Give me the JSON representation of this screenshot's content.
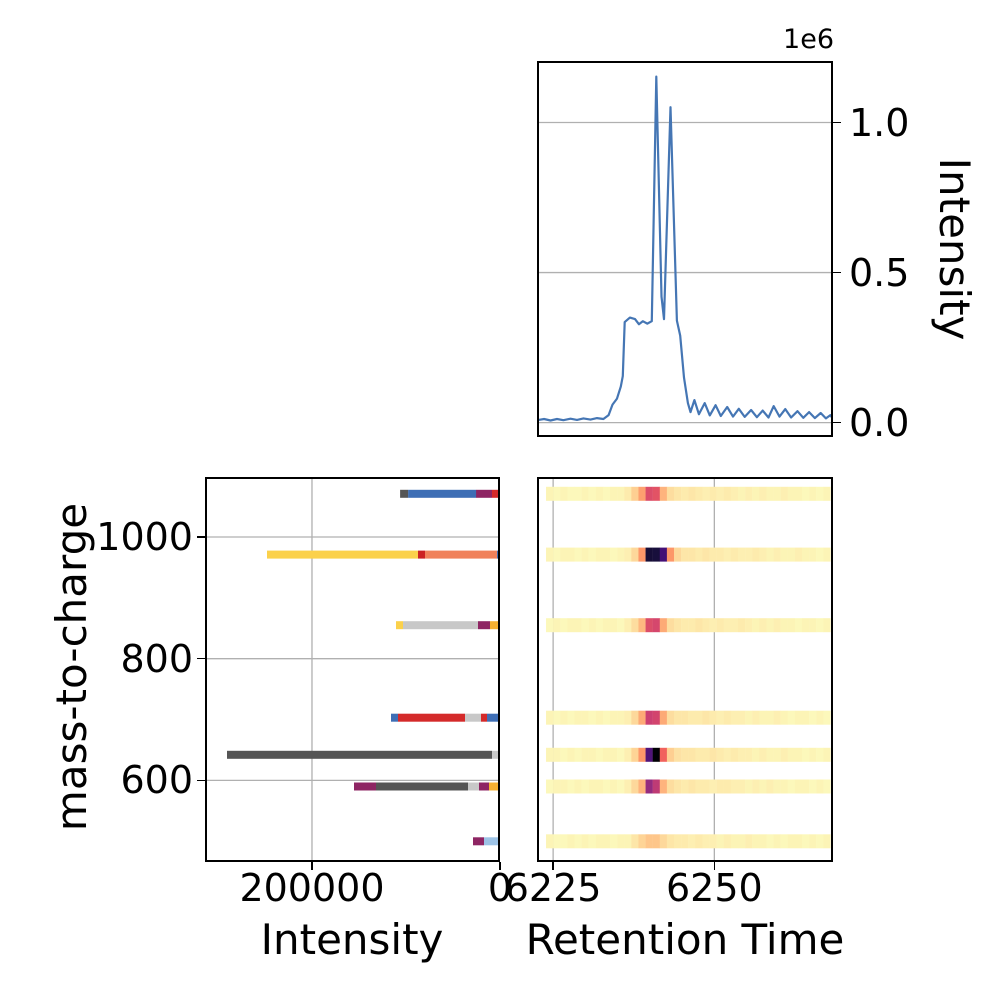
{
  "style": {
    "background": "#ffffff",
    "grid_color": "#b0b0b0",
    "spine_color": "#000000",
    "line_color": "#4576b4",
    "text_color": "#000000"
  },
  "panels": {
    "xic": {
      "ylabel": "Intensity",
      "offset_label": "1e6"
    },
    "spectrum": {
      "xlabel": "Intensity",
      "ylabel": "mass-to-charge"
    },
    "heatmap": {
      "xlabel": "Retention Time"
    }
  },
  "chart_data": [
    {
      "type": "line",
      "name": "chromatogram",
      "xlabel": "Retention Time",
      "ylabel": "Intensity",
      "offset": "1e6",
      "xlim": [
        6222.5,
        6268.4
      ],
      "ylim": [
        -48000,
        1205000
      ],
      "grid": "horizontal",
      "yticks": [
        {
          "v": 0,
          "label": "0.0"
        },
        {
          "v": 500000,
          "label": "0.5"
        },
        {
          "v": 1000000,
          "label": "1.0"
        }
      ],
      "x": [
        6222.5,
        6223.6,
        6224.6,
        6225.6,
        6226.6,
        6227.7,
        6228.7,
        6229.7,
        6230.8,
        6231.8,
        6232.8,
        6233.6,
        6234.2,
        6234.9,
        6235.5,
        6235.8,
        6236.1,
        6236.9,
        6237.7,
        6238.3,
        6238.9,
        6239.6,
        6240.3,
        6241.0,
        6241.8,
        6242.2,
        6243.2,
        6244.2,
        6244.7,
        6245.3,
        6245.9,
        6246.3,
        6246.9,
        6247.6,
        6248.5,
        6249.3,
        6250.2,
        6251.0,
        6252.0,
        6252.9,
        6253.8,
        6254.7,
        6255.7,
        6256.6,
        6257.5,
        6258.4,
        6259.2,
        6260.1,
        6261.0,
        6261.9,
        6262.9,
        6263.8,
        6264.7,
        6265.6,
        6266.5,
        6267.3,
        6268.0,
        6268.4
      ],
      "y": [
        8000,
        12000,
        7000,
        12000,
        8000,
        13000,
        9000,
        14000,
        10000,
        15000,
        12000,
        25000,
        60000,
        80000,
        120000,
        155000,
        335000,
        350000,
        345000,
        328000,
        338000,
        330000,
        338000,
        1153000,
        420000,
        345000,
        1051000,
        340000,
        290000,
        150000,
        65000,
        35000,
        75000,
        28000,
        65000,
        24000,
        58000,
        22000,
        52000,
        20000,
        46000,
        19000,
        42000,
        18000,
        40000,
        17000,
        55000,
        20000,
        45000,
        17000,
        38000,
        16000,
        35000,
        15000,
        32000,
        14000,
        25000,
        12000
      ]
    },
    {
      "type": "bar",
      "name": "mass-spectrum",
      "orientation": "horizontal-stacked",
      "stack_origin": "right edge (intensity 0), x-axis inverted",
      "xlabel": "Intensity",
      "ylabel": "mass-to-charge",
      "xlim": [
        0,
        313800
      ],
      "ylim": [
        465.9,
        1098.6
      ],
      "grid": "both",
      "xticks": [
        {
          "v": 200000,
          "label": "200000"
        },
        {
          "v": 0,
          "label": "0"
        }
      ],
      "yticks": [
        {
          "v": 1000,
          "label": "1000"
        },
        {
          "v": 800,
          "label": "800"
        },
        {
          "v": 600,
          "label": "600"
        }
      ],
      "palette": {
        "blue": "#3e6eb5",
        "red": "#d42a2a",
        "dark_red": "#cc2222",
        "magenta": "#8e2563",
        "dark_gray": "#555555",
        "silver": "#c8c8c8",
        "yellow": "#fbd14b",
        "salmon": "#f0815a",
        "orange": "#f5b031",
        "light_blue": "#9dc3e6"
      },
      "bars": [
        {
          "mz": 1071,
          "segments": [
            {
              "color": "red",
              "value": 8500
            },
            {
              "color": "magenta",
              "value": 17000
            },
            {
              "color": "blue",
              "value": 72300
            },
            {
              "color": "dark_gray",
              "value": 8500
            }
          ]
        },
        {
          "mz": 971,
          "segments": [
            {
              "color": "blue",
              "value": 3200
            },
            {
              "color": "salmon",
              "value": 76600
            },
            {
              "color": "dark_red",
              "value": 7400
            },
            {
              "color": "yellow",
              "value": 160600
            }
          ]
        },
        {
          "mz": 855,
          "segments": [
            {
              "color": "orange",
              "value": 10600
            },
            {
              "color": "magenta",
              "value": 12800
            },
            {
              "color": "silver",
              "value": 79800
            },
            {
              "color": "yellow",
              "value": 7400
            }
          ]
        },
        {
          "mz": 703,
          "segments": [
            {
              "color": "blue",
              "value": 13800
            },
            {
              "color": "red",
              "value": 6400
            },
            {
              "color": "silver",
              "value": 17000
            },
            {
              "color": "red",
              "value": 71300
            },
            {
              "color": "blue",
              "value": 7400
            }
          ]
        },
        {
          "mz": 642,
          "segments": [
            {
              "color": "silver",
              "value": 8500
            },
            {
              "color": "dark_gray",
              "value": 281900
            }
          ]
        },
        {
          "mz": 590,
          "segments": [
            {
              "color": "orange",
              "value": 11700
            },
            {
              "color": "magenta",
              "value": 10600
            },
            {
              "color": "silver",
              "value": 11700
            },
            {
              "color": "dark_gray",
              "value": 97900
            },
            {
              "color": "magenta",
              "value": 23400
            }
          ]
        },
        {
          "mz": 500,
          "segments": [
            {
              "color": "light_blue",
              "value": 17000
            },
            {
              "color": "magenta",
              "value": 11700
            }
          ]
        }
      ]
    },
    {
      "type": "heatmap",
      "name": "feature-map",
      "xlabel": "Retention Time",
      "xlim": [
        6222.5,
        6268.4
      ],
      "ylim": [
        465.9,
        1098.6
      ],
      "grid": "vertical",
      "xticks": [
        {
          "v": 6225,
          "label": "6225"
        },
        {
          "v": 6250,
          "label": "6250"
        }
      ],
      "rt_start": 6223.9,
      "rt_end": 6268.0,
      "row_height_mz": 23,
      "colormap": "magma_r",
      "colormap_stops": [
        "#000004",
        "#180f3d",
        "#440f76",
        "#721f81",
        "#9e2f7f",
        "#cd4071",
        "#f1605d",
        "#fd9668",
        "#feca8d",
        "#fcfdbf"
      ],
      "rows": [
        {
          "mz": 1071,
          "cells": [
            0.02,
            0.01,
            0.02,
            0.01,
            0.01,
            0.02,
            0.01,
            0.02,
            0.01,
            0.02,
            0.02,
            0.04,
            0.1,
            0.2,
            0.4,
            0.38,
            0.16,
            0.07,
            0.05,
            0.04,
            0.05,
            0.04,
            0.03,
            0.04,
            0.03,
            0.04,
            0.03,
            0.02,
            0.03,
            0.02,
            0.03,
            0.02,
            0.02,
            0.03,
            0.02,
            0.02,
            0.01,
            0.02,
            0.01,
            0.02
          ]
        },
        {
          "mz": 971,
          "cells": [
            0.02,
            0.01,
            0.02,
            0.02,
            0.01,
            0.02,
            0.01,
            0.02,
            0.02,
            0.01,
            0.02,
            0.03,
            0.08,
            0.22,
            0.9,
            0.89,
            0.78,
            0.22,
            0.08,
            0.05,
            0.05,
            0.04,
            0.05,
            0.04,
            0.04,
            0.03,
            0.04,
            0.03,
            0.03,
            0.04,
            0.03,
            0.02,
            0.03,
            0.02,
            0.02,
            0.03,
            0.02,
            0.02,
            0.01,
            0.02
          ]
        },
        {
          "mz": 855,
          "cells": [
            0.01,
            0.02,
            0.01,
            0.02,
            0.02,
            0.01,
            0.02,
            0.01,
            0.02,
            0.02,
            0.01,
            0.03,
            0.07,
            0.15,
            0.4,
            0.42,
            0.18,
            0.07,
            0.05,
            0.04,
            0.04,
            0.05,
            0.04,
            0.03,
            0.04,
            0.03,
            0.03,
            0.04,
            0.03,
            0.02,
            0.03,
            0.02,
            0.03,
            0.02,
            0.02,
            0.01,
            0.02,
            0.02,
            0.01,
            0.02
          ]
        },
        {
          "mz": 703,
          "cells": [
            0.02,
            0.01,
            0.02,
            0.01,
            0.02,
            0.02,
            0.01,
            0.02,
            0.01,
            0.02,
            0.02,
            0.03,
            0.08,
            0.18,
            0.45,
            0.43,
            0.18,
            0.07,
            0.05,
            0.05,
            0.04,
            0.04,
            0.05,
            0.04,
            0.03,
            0.04,
            0.03,
            0.03,
            0.02,
            0.03,
            0.02,
            0.02,
            0.03,
            0.02,
            0.01,
            0.02,
            0.02,
            0.01,
            0.02,
            0.01
          ]
        },
        {
          "mz": 642,
          "cells": [
            0.02,
            0.02,
            0.01,
            0.02,
            0.01,
            0.02,
            0.02,
            0.01,
            0.02,
            0.02,
            0.01,
            0.03,
            0.09,
            0.22,
            0.75,
            1.0,
            0.33,
            0.1,
            0.06,
            0.05,
            0.05,
            0.04,
            0.04,
            0.05,
            0.04,
            0.03,
            0.04,
            0.03,
            0.03,
            0.02,
            0.03,
            0.02,
            0.02,
            0.03,
            0.02,
            0.02,
            0.01,
            0.02,
            0.01,
            0.02
          ]
        },
        {
          "mz": 590,
          "cells": [
            0.01,
            0.02,
            0.02,
            0.01,
            0.02,
            0.01,
            0.02,
            0.02,
            0.01,
            0.02,
            0.01,
            0.03,
            0.08,
            0.16,
            0.58,
            0.48,
            0.16,
            0.07,
            0.05,
            0.04,
            0.05,
            0.04,
            0.04,
            0.03,
            0.04,
            0.04,
            0.03,
            0.03,
            0.02,
            0.03,
            0.02,
            0.03,
            0.02,
            0.02,
            0.01,
            0.02,
            0.02,
            0.01,
            0.02,
            0.01
          ]
        },
        {
          "mz": 500,
          "cells": [
            0.02,
            0.01,
            0.01,
            0.02,
            0.01,
            0.02,
            0.01,
            0.02,
            0.02,
            0.01,
            0.02,
            0.02,
            0.05,
            0.09,
            0.12,
            0.12,
            0.08,
            0.05,
            0.04,
            0.04,
            0.03,
            0.04,
            0.03,
            0.03,
            0.02,
            0.03,
            0.02,
            0.02,
            0.03,
            0.02,
            0.02,
            0.01,
            0.02,
            0.01,
            0.02,
            0.02,
            0.01,
            0.02,
            0.01,
            0.02
          ]
        }
      ]
    }
  ]
}
